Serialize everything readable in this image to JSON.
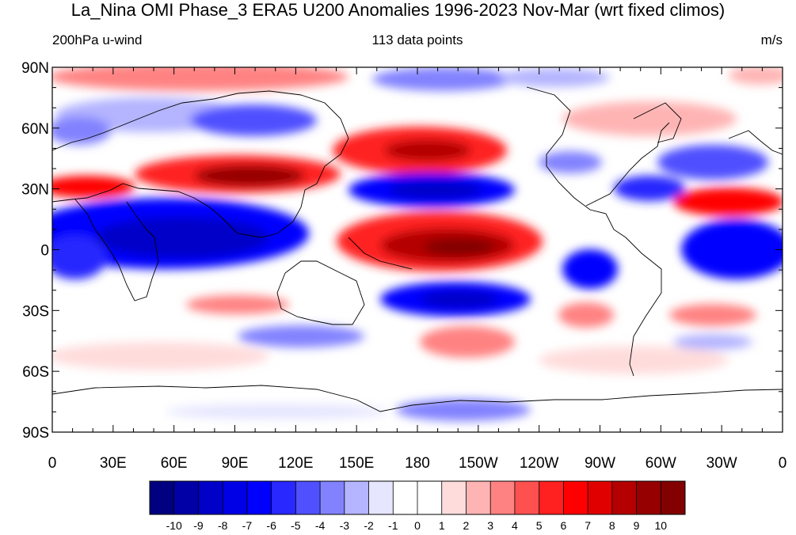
{
  "title": "La_Nina OMI Phase_3 ERA5 U200 Anomalies 1996-2023 Nov-Mar (wrt fixed climos)",
  "subtitle_left": "200hPa u-wind",
  "subtitle_center": "113 data points",
  "subtitle_right": "m/s",
  "lat_labels": [
    "90N",
    "60N",
    "30N",
    "0",
    "30S",
    "60S",
    "90S"
  ],
  "lon_labels": [
    "0",
    "30E",
    "60E",
    "90E",
    "120E",
    "150E",
    "180",
    "150W",
    "120W",
    "90W",
    "60W",
    "30W",
    "0"
  ],
  "colorbar": {
    "labels": [
      "-10",
      "-9",
      "-8",
      "-7",
      "-6",
      "-5",
      "-4",
      "-3",
      "-2",
      "-1",
      "0",
      "1",
      "2",
      "3",
      "4",
      "5",
      "6",
      "7",
      "8",
      "9",
      "10"
    ],
    "colors": [
      "#000080",
      "#0000a6",
      "#0000c8",
      "#0000e6",
      "#0000ff",
      "#2828ff",
      "#5050ff",
      "#8282ff",
      "#b4b4ff",
      "#e6e6ff",
      "#ffffff",
      "#ffffff",
      "#ffdcdc",
      "#ffb4b4",
      "#ff8282",
      "#ff5050",
      "#ff2020",
      "#ff0000",
      "#e00000",
      "#b40000",
      "#960000",
      "#820000"
    ]
  }
}
